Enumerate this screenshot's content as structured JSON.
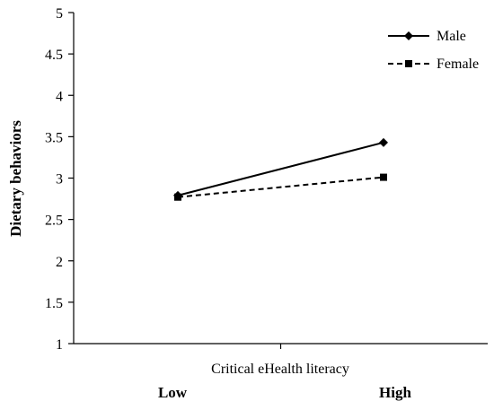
{
  "chart_data": {
    "type": "line",
    "title": "",
    "xlabel": "Critical eHealth literacy",
    "ylabel": "Dietary behaviors",
    "categories": [
      "Low",
      "High"
    ],
    "ylim": [
      1,
      5
    ],
    "yticks": [
      1,
      1.5,
      2,
      2.5,
      3,
      3.5,
      4,
      4.5,
      5
    ],
    "ytick_labels": [
      "1",
      "1.5",
      "2",
      "2.5",
      "3",
      "3.5",
      "4",
      "4.5",
      "5"
    ],
    "grid": false,
    "legend_position": "top-right",
    "series": [
      {
        "name": "Male",
        "values": [
          2.79,
          3.43
        ],
        "marker": "diamond",
        "line_style": "solid",
        "color": "#000000"
      },
      {
        "name": "Female",
        "values": [
          2.77,
          3.01
        ],
        "marker": "square",
        "line_style": "dashed",
        "color": "#000000"
      }
    ]
  }
}
